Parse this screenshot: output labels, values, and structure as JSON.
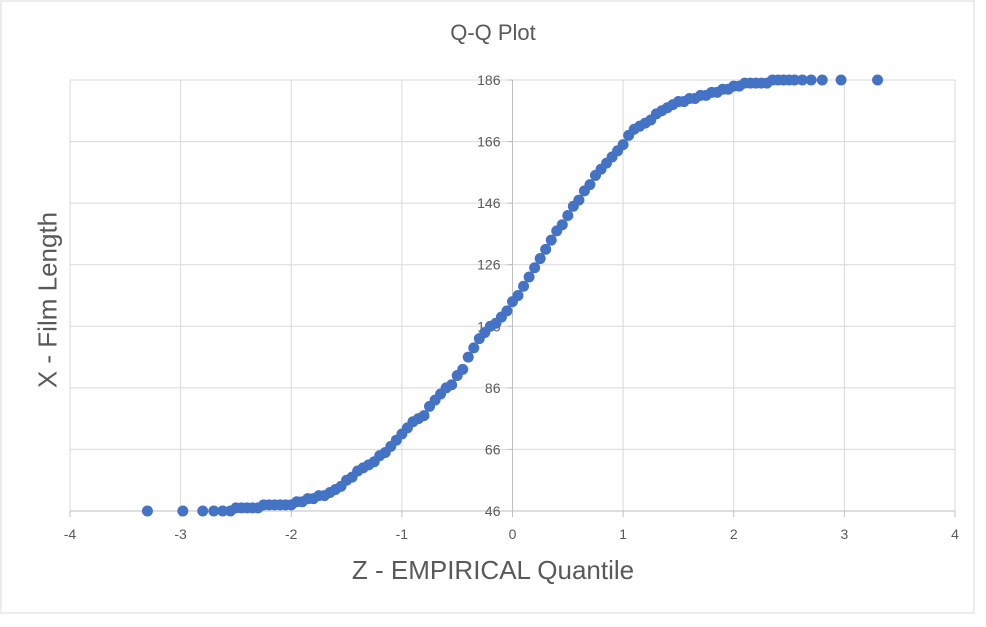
{
  "chart_data": {
    "type": "scatter",
    "title": "Q-Q Plot",
    "xlabel": "Z - EMPIRICAL Quantile",
    "ylabel": "X - Film Length",
    "xlim": [
      -4,
      4
    ],
    "ylim": [
      46,
      186
    ],
    "xticks": [
      "-4",
      "-3",
      "-2",
      "-1",
      "0",
      "1",
      "2",
      "3",
      "4"
    ],
    "yticks": [
      "46",
      "66",
      "86",
      "106",
      "126",
      "146",
      "166",
      "186"
    ],
    "grid": true,
    "legend": "none",
    "marker_color": "#4472C4",
    "x": [
      -3.3,
      -2.98,
      -2.8,
      -2.7,
      -2.62,
      -2.55,
      -2.5,
      -2.45,
      -2.4,
      -2.35,
      -2.3,
      -2.25,
      -2.2,
      -2.15,
      -2.1,
      -2.05,
      -2.0,
      -1.95,
      -1.9,
      -1.85,
      -1.8,
      -1.75,
      -1.7,
      -1.65,
      -1.6,
      -1.55,
      -1.5,
      -1.45,
      -1.4,
      -1.35,
      -1.3,
      -1.25,
      -1.2,
      -1.15,
      -1.1,
      -1.05,
      -1.0,
      -0.95,
      -0.9,
      -0.85,
      -0.8,
      -0.75,
      -0.7,
      -0.65,
      -0.6,
      -0.55,
      -0.5,
      -0.45,
      -0.4,
      -0.35,
      -0.3,
      -0.25,
      -0.2,
      -0.15,
      -0.1,
      -0.05,
      0.0,
      0.05,
      0.1,
      0.15,
      0.2,
      0.25,
      0.3,
      0.35,
      0.4,
      0.45,
      0.5,
      0.55,
      0.6,
      0.65,
      0.7,
      0.75,
      0.8,
      0.85,
      0.9,
      0.95,
      1.0,
      1.05,
      1.1,
      1.15,
      1.2,
      1.25,
      1.3,
      1.35,
      1.4,
      1.45,
      1.5,
      1.55,
      1.6,
      1.65,
      1.7,
      1.75,
      1.8,
      1.85,
      1.9,
      1.95,
      2.0,
      2.05,
      2.1,
      2.15,
      2.2,
      2.25,
      2.3,
      2.35,
      2.4,
      2.45,
      2.5,
      2.55,
      2.62,
      2.7,
      2.8,
      2.97,
      3.3
    ],
    "y": [
      46,
      46,
      46,
      46,
      46,
      46,
      47,
      47,
      47,
      47,
      47,
      48,
      48,
      48,
      48,
      48,
      48,
      49,
      49,
      50,
      50,
      51,
      51,
      52,
      53,
      54,
      56,
      57,
      59,
      60,
      61,
      62,
      64,
      65,
      67,
      69,
      71,
      73,
      75,
      76,
      77,
      80,
      82,
      84,
      86,
      87,
      90,
      92,
      96,
      99,
      102,
      104,
      106,
      107,
      109,
      111,
      114,
      116,
      119,
      122,
      125,
      128,
      131,
      134,
      137,
      139,
      142,
      145,
      147,
      150,
      152,
      155,
      157,
      159,
      161,
      163,
      165,
      168,
      170,
      171,
      172,
      173,
      175,
      176,
      177,
      178,
      179,
      179,
      180,
      180,
      181,
      181,
      182,
      182,
      183,
      183,
      184,
      184,
      185,
      185,
      185,
      185,
      185,
      186,
      186,
      186,
      186,
      186,
      186,
      186,
      186,
      186,
      186
    ]
  }
}
